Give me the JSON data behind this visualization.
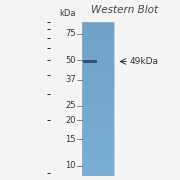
{
  "title": "Western Blot",
  "kda_label": "kDa",
  "markers": [
    75,
    50,
    37,
    25,
    20,
    15,
    10
  ],
  "band_kda": 49,
  "band_annotation": "←49kDa",
  "gel_color": "#7aaed4",
  "gel_color_dark": "#6090bb",
  "band_color": "#2a4a6a",
  "background_color": "#f5f5f5",
  "title_fontsize": 7.5,
  "marker_fontsize": 6,
  "annotation_fontsize": 6.5
}
